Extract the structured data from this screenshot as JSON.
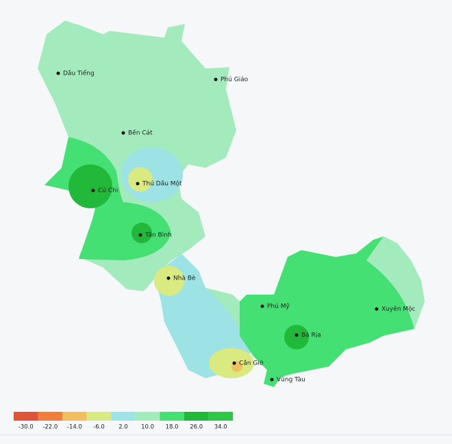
{
  "map": {
    "places": [
      "Dầu Tiếng",
      "Phú Giáo",
      "Bến Cát",
      "Thủ Dầu Một",
      "Củ Chi",
      "Tân Bình",
      "Nhà Bè",
      "Phú Mỹ",
      "Xuyên Mộc",
      "Bà Rịa",
      "Cần Giờ",
      "Vũng Tàu"
    ],
    "legend": {
      "colors": [
        "#e0553a",
        "#ef7f3a",
        "#f0c060",
        "#d8ea80",
        "#9de2e5",
        "#a3ebbd",
        "#45e074",
        "#22b83a",
        "#2ec746"
      ],
      "ticks": [
        {
          "value": -30,
          "label": "-30.0"
        },
        {
          "value": -22,
          "label": "-22.0"
        },
        {
          "value": -14,
          "label": "-14.0"
        },
        {
          "value": -6,
          "label": "-6.0"
        },
        {
          "value": 2,
          "label": "2.0"
        },
        {
          "value": 10,
          "label": "10.0"
        },
        {
          "value": 18,
          "label": "18.0"
        },
        {
          "value": 26,
          "label": "26.0"
        },
        {
          "value": 34,
          "label": "34.0"
        }
      ]
    }
  }
}
